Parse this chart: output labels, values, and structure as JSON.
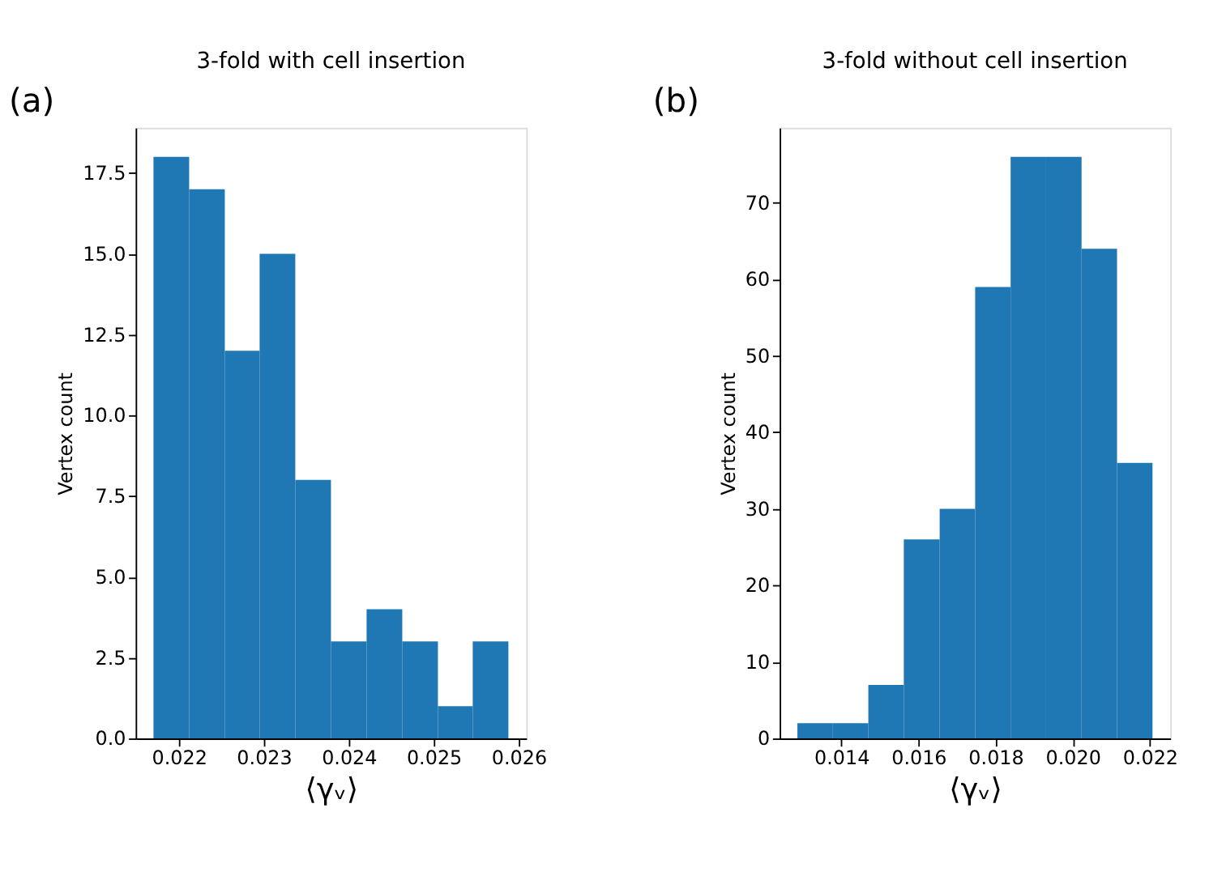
{
  "chart_data": [
    {
      "type": "histogram",
      "title": "3-fold with cell insertion",
      "xlabel": "⟨γᵥ⟩",
      "ylabel": "Vertex count",
      "annotations": [
        "(a)"
      ],
      "bins": [
        0.0217,
        0.02212,
        0.02254,
        0.02295,
        0.02337,
        0.02379,
        0.02421,
        0.02463,
        0.02505,
        0.02546,
        0.02588
      ],
      "values": [
        18,
        17,
        12,
        15,
        8,
        3,
        4,
        3,
        1,
        3
      ],
      "color": "#1f77b4",
      "xlim": [
        0.02149,
        0.02609
      ],
      "xticks": [
        0.022,
        0.023,
        0.024,
        0.025,
        0.026
      ],
      "ylim": [
        0,
        18.9
      ],
      "yticks": [
        {
          "value": 0,
          "label": "0.0"
        },
        {
          "value": 2.5,
          "label": "2.5"
        },
        {
          "value": 5,
          "label": "5.0"
        },
        {
          "value": 7.5,
          "label": "7.5"
        },
        {
          "value": 10,
          "label": "10.0"
        },
        {
          "value": 12.5,
          "label": "12.5"
        },
        {
          "value": 15,
          "label": "15.0"
        },
        {
          "value": 17.5,
          "label": "17.5"
        }
      ],
      "grid": false
    },
    {
      "type": "histogram",
      "title": "3-fold without cell insertion",
      "xlabel": "⟨γᵥ⟩",
      "ylabel": "Vertex count",
      "annotations": [
        "(b)"
      ],
      "bins": [
        0.01286,
        0.01378,
        0.0147,
        0.01562,
        0.01655,
        0.01747,
        0.01839,
        0.01931,
        0.02023,
        0.02115,
        0.02207
      ],
      "values": [
        2,
        2,
        7,
        26,
        30,
        59,
        76,
        76,
        64,
        36
      ],
      "color": "#1f77b4",
      "xlim": [
        0.0124,
        0.02253
      ],
      "xticks": [
        0.014,
        0.016,
        0.018,
        {
          "value": 0.02,
          "label": "0.020"
        },
        0.022
      ],
      "ylim": [
        0,
        79.8
      ],
      "yticks": [
        0,
        10,
        20,
        30,
        40,
        50,
        60,
        70
      ],
      "grid": false
    }
  ]
}
